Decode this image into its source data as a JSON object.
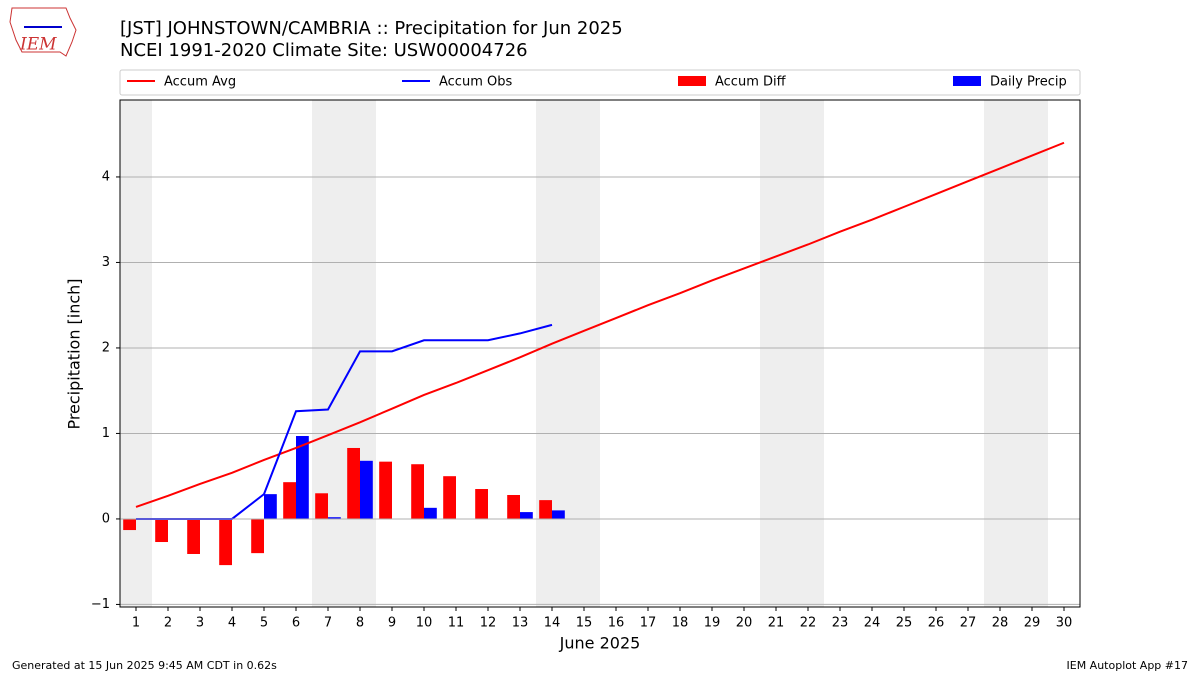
{
  "logo": "IEM",
  "footer_left": "Generated at 15 Jun 2025 9:45 AM CDT in 0.62s",
  "footer_right": "IEM Autoplot App #17",
  "chart_data": {
    "type": "bar-line",
    "title": "[JST] JOHNSTOWN/CAMBRIA :: Precipitation for Jun 2025",
    "subtitle": "NCEI 1991-2020 Climate Site: USW00004726",
    "xlabel": "June 2025",
    "ylabel": "Precipitation [inch]",
    "x": [
      1,
      2,
      3,
      4,
      5,
      6,
      7,
      8,
      9,
      10,
      11,
      12,
      13,
      14,
      15,
      16,
      17,
      18,
      19,
      20,
      21,
      22,
      23,
      24,
      25,
      26,
      27,
      28,
      29,
      30
    ],
    "xlim": [
      0.5,
      30.5
    ],
    "xticks": [
      1,
      2,
      3,
      4,
      5,
      6,
      7,
      8,
      9,
      10,
      11,
      12,
      13,
      14,
      15,
      16,
      17,
      18,
      19,
      20,
      21,
      22,
      23,
      24,
      25,
      26,
      27,
      28,
      29,
      30
    ],
    "ylim": [
      -1.03,
      4.9
    ],
    "yticks": [
      {
        "value": -1,
        "label": "−1"
      },
      0,
      1,
      2,
      3,
      4
    ],
    "grid": true,
    "shaded_days": [
      1,
      7,
      8,
      14,
      15,
      21,
      22,
      28,
      29
    ],
    "shade_color": "#eeeeee",
    "series": [
      {
        "name": "Accum Avg",
        "kind": "line",
        "color": "#ff0000",
        "values": [
          0.14,
          0.27,
          0.41,
          0.54,
          0.69,
          0.83,
          0.98,
          1.13,
          1.29,
          1.45,
          1.59,
          1.74,
          1.89,
          2.05,
          2.2,
          2.35,
          2.5,
          2.64,
          2.79,
          2.93,
          3.07,
          3.21,
          3.36,
          3.5,
          3.65,
          3.8,
          3.95,
          4.1,
          4.25,
          4.4
        ]
      },
      {
        "name": "Accum Obs",
        "kind": "line",
        "color": "#0000ff",
        "values": [
          0,
          0,
          0,
          0,
          0.29,
          1.26,
          1.28,
          1.96,
          1.96,
          2.09,
          2.09,
          2.09,
          2.17,
          2.27,
          null,
          null,
          null,
          null,
          null,
          null,
          null,
          null,
          null,
          null,
          null,
          null,
          null,
          null,
          null,
          null
        ]
      },
      {
        "name": "Accum Diff",
        "kind": "bar",
        "offset": "left",
        "color": "#ff0000",
        "values": [
          -0.13,
          -0.27,
          -0.41,
          -0.54,
          -0.4,
          0.43,
          0.3,
          0.83,
          0.67,
          0.64,
          0.5,
          0.35,
          0.28,
          0.22,
          null,
          null,
          null,
          null,
          null,
          null,
          null,
          null,
          null,
          null,
          null,
          null,
          null,
          null,
          null,
          null
        ]
      },
      {
        "name": "Daily Precip",
        "kind": "bar",
        "offset": "right",
        "color": "#0000ff",
        "values": [
          0,
          0,
          0,
          0,
          0.29,
          0.97,
          0.02,
          0.68,
          0,
          0.13,
          0,
          0,
          0.08,
          0.1,
          null,
          null,
          null,
          null,
          null,
          null,
          null,
          null,
          null,
          null,
          null,
          null,
          null,
          null,
          null,
          null
        ]
      }
    ]
  }
}
